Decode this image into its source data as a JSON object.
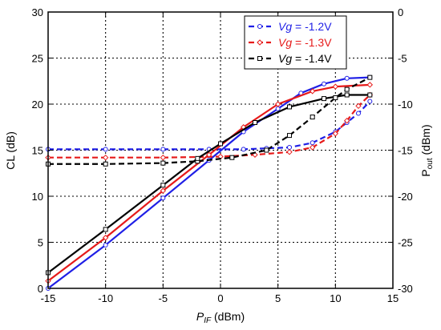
{
  "chart_data": {
    "type": "line",
    "xlabel": {
      "main": "P",
      "sub": "IF",
      "unit": " (dBm)"
    },
    "ylabel_left": "CL (dB)",
    "ylabel_right": {
      "main": "P",
      "sub": "out",
      "unit": " (dBm)"
    },
    "xlim": [
      -15,
      15
    ],
    "ylim_left": [
      0,
      30
    ],
    "ylim_right": [
      -30,
      0
    ],
    "xticks": [
      "-15",
      "-10",
      "-5",
      "0",
      "5",
      "10",
      "15"
    ],
    "yticks_left": [
      "0",
      "5",
      "10",
      "15",
      "20",
      "25",
      "30"
    ],
    "yticks_right": [
      "-30",
      "-25",
      "-20",
      "-15",
      "-10",
      "-5",
      "0"
    ],
    "grid": true,
    "legend_position": "top-right",
    "series": [
      {
        "name_italic": "Vg",
        "name_rest": " = -1.2V",
        "color": "#1f1fe6",
        "marker": "circle",
        "cl": [
          [
            -15,
            15.1
          ],
          [
            -10,
            15.1
          ],
          [
            -5,
            15.1
          ],
          [
            -1,
            15.1
          ],
          [
            2,
            15.1
          ],
          [
            4,
            15.2
          ],
          [
            6,
            15.3
          ],
          [
            8,
            15.8
          ],
          [
            10,
            17.0
          ],
          [
            11,
            18.0
          ],
          [
            12,
            19.0
          ],
          [
            13,
            20.3
          ]
        ],
        "pout": [
          [
            -15,
            -30.0
          ],
          [
            -10,
            -25.3
          ],
          [
            -5,
            -20.2
          ],
          [
            -1,
            -16.1
          ],
          [
            2,
            -13.0
          ],
          [
            5,
            -10.5
          ],
          [
            7,
            -8.8
          ],
          [
            9,
            -7.8
          ],
          [
            11,
            -7.2
          ],
          [
            13,
            -7.1
          ]
        ]
      },
      {
        "name_italic": "Vg",
        "name_rest": " = -1.3V",
        "color": "#e61a1a",
        "marker": "diamond",
        "cl": [
          [
            -15,
            14.2
          ],
          [
            -10,
            14.2
          ],
          [
            -5,
            14.2
          ],
          [
            0,
            14.3
          ],
          [
            3,
            14.5
          ],
          [
            6,
            14.8
          ],
          [
            8,
            15.3
          ],
          [
            10,
            16.8
          ],
          [
            11,
            18.2
          ],
          [
            12,
            19.8
          ],
          [
            13,
            21.0
          ]
        ],
        "pout": [
          [
            -15,
            -29.2
          ],
          [
            -10,
            -24.5
          ],
          [
            -5,
            -19.4
          ],
          [
            -1,
            -15.5
          ],
          [
            2,
            -12.5
          ],
          [
            5,
            -10.0
          ],
          [
            8,
            -8.6
          ],
          [
            10,
            -8.1
          ],
          [
            13,
            -7.9
          ]
        ]
      },
      {
        "name_italic": "Vg",
        "name_rest": " = -1.4V",
        "color": "#000000",
        "marker": "square",
        "cl": [
          [
            -15,
            13.5
          ],
          [
            -10,
            13.5
          ],
          [
            -5,
            13.6
          ],
          [
            -2,
            13.8
          ],
          [
            1,
            14.2
          ],
          [
            4,
            15.0
          ],
          [
            6,
            16.6
          ],
          [
            8,
            18.6
          ],
          [
            10,
            20.7
          ],
          [
            11,
            21.6
          ],
          [
            13,
            22.9
          ]
        ],
        "pout": [
          [
            -15,
            -28.3
          ],
          [
            -10,
            -23.6
          ],
          [
            -5,
            -18.8
          ],
          [
            -2,
            -15.9
          ],
          [
            0,
            -14.3
          ],
          [
            3,
            -12.0
          ],
          [
            6,
            -10.3
          ],
          [
            9,
            -9.4
          ],
          [
            11,
            -9.0
          ],
          [
            13,
            -9.0
          ]
        ]
      }
    ]
  }
}
